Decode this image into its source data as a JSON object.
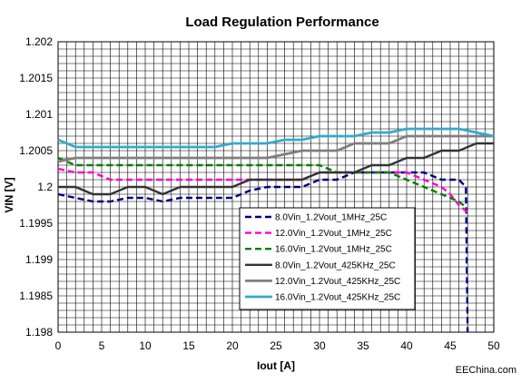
{
  "chart_data": {
    "type": "line",
    "title": "Load Regulation Performance",
    "xlabel": "Iout [A]",
    "ylabel": "VIN [V]",
    "xlim": [
      0,
      50
    ],
    "ylim": [
      1.198,
      1.202
    ],
    "xticks": [
      0,
      5,
      10,
      15,
      20,
      25,
      30,
      35,
      40,
      45,
      50
    ],
    "yticks": [
      1.198,
      1.1985,
      1.199,
      1.1995,
      1.2,
      1.2005,
      1.201,
      1.2015,
      1.202
    ],
    "ytick_labels": [
      "1.198",
      "1.1985",
      "1.199",
      "1.1995",
      "1.2",
      "1.2005",
      "1.201",
      "1.2015",
      "1.202"
    ],
    "grid": true,
    "legend_position": "lower-center",
    "series": [
      {
        "name": "8.0Vin_1.2Vout_1MHz_25C",
        "color": "#00007f",
        "dash": true,
        "width": 2.4,
        "points": [
          [
            0,
            1.1999
          ],
          [
            2,
            1.19985
          ],
          [
            4,
            1.1998
          ],
          [
            6,
            1.1998
          ],
          [
            8,
            1.19985
          ],
          [
            10,
            1.19985
          ],
          [
            12,
            1.1998
          ],
          [
            14,
            1.19985
          ],
          [
            16,
            1.19985
          ],
          [
            18,
            1.19985
          ],
          [
            20,
            1.19985
          ],
          [
            22,
            1.19995
          ],
          [
            24,
            1.2
          ],
          [
            26,
            1.2
          ],
          [
            28,
            1.2
          ],
          [
            30,
            1.2001
          ],
          [
            32,
            1.2001
          ],
          [
            34,
            1.2002
          ],
          [
            36,
            1.2002
          ],
          [
            38,
            1.2002
          ],
          [
            40,
            1.2002
          ],
          [
            42,
            1.2002
          ],
          [
            44,
            1.2001
          ],
          [
            46,
            1.2001
          ],
          [
            46.8,
            1.2
          ],
          [
            47,
            1.198
          ]
        ]
      },
      {
        "name": "12.0Vin_1.2Vout_1MHz_25C",
        "color": "#ff00cc",
        "dash": true,
        "width": 2.4,
        "points": [
          [
            0,
            1.20025
          ],
          [
            2,
            1.2002
          ],
          [
            4,
            1.2002
          ],
          [
            6,
            1.2001
          ],
          [
            8,
            1.2001
          ],
          [
            10,
            1.2001
          ],
          [
            12,
            1.2001
          ],
          [
            14,
            1.2001
          ],
          [
            16,
            1.2001
          ],
          [
            18,
            1.2001
          ],
          [
            20,
            1.2001
          ],
          [
            22,
            1.2001
          ],
          [
            24,
            1.2001
          ],
          [
            26,
            1.2001
          ],
          [
            28,
            1.2001
          ],
          [
            30,
            1.2002
          ],
          [
            32,
            1.2002
          ],
          [
            34,
            1.2002
          ],
          [
            36,
            1.2002
          ],
          [
            38,
            1.2002
          ],
          [
            40,
            1.2002
          ],
          [
            42,
            1.2001
          ],
          [
            44,
            1.2
          ],
          [
            45,
            1.1999
          ],
          [
            46,
            1.19975
          ],
          [
            47,
            1.19965
          ]
        ]
      },
      {
        "name": "16.0Vin_1.2Vout_1MHz_25C",
        "color": "#007f00",
        "dash": true,
        "width": 2.4,
        "points": [
          [
            0,
            1.2004
          ],
          [
            2,
            1.2003
          ],
          [
            4,
            1.2003
          ],
          [
            6,
            1.2003
          ],
          [
            8,
            1.2003
          ],
          [
            10,
            1.2003
          ],
          [
            12,
            1.2003
          ],
          [
            14,
            1.2003
          ],
          [
            16,
            1.2003
          ],
          [
            18,
            1.2003
          ],
          [
            20,
            1.2003
          ],
          [
            22,
            1.2003
          ],
          [
            24,
            1.2003
          ],
          [
            26,
            1.2003
          ],
          [
            28,
            1.2003
          ],
          [
            30,
            1.2003
          ],
          [
            32,
            1.2002
          ],
          [
            34,
            1.2002
          ],
          [
            36,
            1.2002
          ],
          [
            38,
            1.2002
          ],
          [
            40,
            1.2001
          ],
          [
            42,
            1.2
          ],
          [
            44,
            1.1999
          ],
          [
            45,
            1.19985
          ],
          [
            46,
            1.1998
          ],
          [
            47,
            1.1997
          ]
        ]
      },
      {
        "name": "8.0Vin_1.2Vout_425KHz_25C",
        "color": "#333333",
        "dash": false,
        "width": 2.4,
        "points": [
          [
            0,
            1.2
          ],
          [
            2,
            1.2
          ],
          [
            4,
            1.1999
          ],
          [
            6,
            1.1999
          ],
          [
            8,
            1.2
          ],
          [
            10,
            1.2
          ],
          [
            12,
            1.1999
          ],
          [
            14,
            1.2
          ],
          [
            16,
            1.2
          ],
          [
            18,
            1.2
          ],
          [
            20,
            1.2
          ],
          [
            22,
            1.2001
          ],
          [
            24,
            1.2001
          ],
          [
            26,
            1.2001
          ],
          [
            28,
            1.2001
          ],
          [
            30,
            1.2002
          ],
          [
            32,
            1.2002
          ],
          [
            34,
            1.2002
          ],
          [
            36,
            1.2003
          ],
          [
            38,
            1.2003
          ],
          [
            40,
            1.2004
          ],
          [
            42,
            1.2004
          ],
          [
            44,
            1.2005
          ],
          [
            46,
            1.2005
          ],
          [
            48,
            1.2006
          ],
          [
            50,
            1.2006
          ]
        ]
      },
      {
        "name": "12.0Vin_1.2Vout_425KHz_25C",
        "color": "#7f7f7f",
        "dash": false,
        "width": 2.8,
        "points": [
          [
            0,
            1.20035
          ],
          [
            2,
            1.2004
          ],
          [
            4,
            1.2004
          ],
          [
            6,
            1.2004
          ],
          [
            8,
            1.2004
          ],
          [
            10,
            1.2004
          ],
          [
            12,
            1.2004
          ],
          [
            14,
            1.2004
          ],
          [
            16,
            1.2004
          ],
          [
            18,
            1.2004
          ],
          [
            20,
            1.2004
          ],
          [
            22,
            1.2004
          ],
          [
            24,
            1.2004
          ],
          [
            26,
            1.20045
          ],
          [
            28,
            1.2005
          ],
          [
            30,
            1.2005
          ],
          [
            32,
            1.2005
          ],
          [
            34,
            1.2006
          ],
          [
            36,
            1.2006
          ],
          [
            38,
            1.2006
          ],
          [
            40,
            1.2007
          ],
          [
            42,
            1.2007
          ],
          [
            44,
            1.2007
          ],
          [
            46,
            1.2007
          ],
          [
            48,
            1.2007
          ],
          [
            50,
            1.2007
          ]
        ]
      },
      {
        "name": "16.0Vin_1.2Vout_425KHz_25C",
        "color": "#33aacc",
        "dash": false,
        "width": 2.8,
        "points": [
          [
            0,
            1.20065
          ],
          [
            1,
            1.2006
          ],
          [
            2,
            1.20055
          ],
          [
            4,
            1.20055
          ],
          [
            6,
            1.20055
          ],
          [
            8,
            1.20055
          ],
          [
            10,
            1.20055
          ],
          [
            12,
            1.20055
          ],
          [
            14,
            1.20055
          ],
          [
            16,
            1.20055
          ],
          [
            18,
            1.20055
          ],
          [
            20,
            1.2006
          ],
          [
            22,
            1.2006
          ],
          [
            24,
            1.2006
          ],
          [
            26,
            1.20065
          ],
          [
            28,
            1.20065
          ],
          [
            30,
            1.2007
          ],
          [
            32,
            1.2007
          ],
          [
            34,
            1.2007
          ],
          [
            36,
            1.20075
          ],
          [
            38,
            1.20075
          ],
          [
            40,
            1.2008
          ],
          [
            42,
            1.2008
          ],
          [
            44,
            1.2008
          ],
          [
            46,
            1.2008
          ],
          [
            48,
            1.20075
          ],
          [
            50,
            1.2007
          ]
        ]
      }
    ]
  },
  "watermark": "EEChina.com"
}
